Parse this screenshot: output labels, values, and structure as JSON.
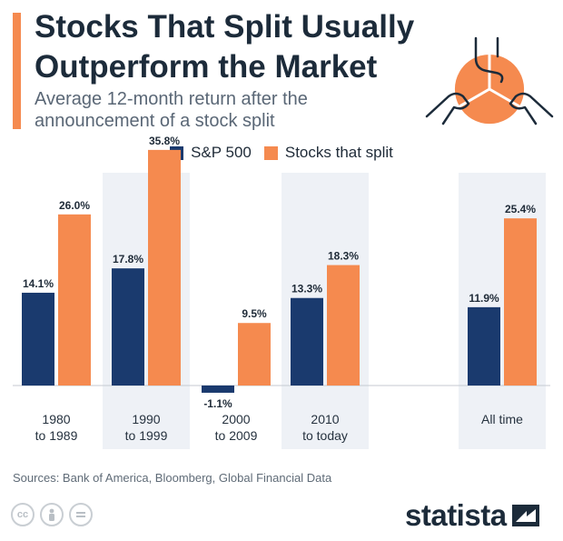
{
  "header": {
    "title": "Stocks That Split Usually Outperform the Market",
    "subtitle": "Average 12-month return after the announcement of a stock split"
  },
  "colors": {
    "accent": "#f58a4f",
    "sp500": "#1a3a6e",
    "split": "#f58a4f",
    "shade": "#eef1f6",
    "title": "#1c2b3a"
  },
  "legend": {
    "sp500": "S&P 500",
    "split": "Stocks that split"
  },
  "chart_data": {
    "type": "bar",
    "title": "Stocks That Split Usually Outperform the Market",
    "subtitle": "Average 12-month return after the announcement of a stock split",
    "categories": [
      "1980\nto 1989",
      "1990\nto 1999",
      "2000\nto 2009",
      "2010\nto today",
      "All time"
    ],
    "shaded": [
      false,
      true,
      false,
      true,
      true
    ],
    "series": [
      {
        "name": "S&P 500",
        "values": [
          14.1,
          17.8,
          -1.1,
          13.3,
          11.9
        ],
        "labels": [
          "14.1%",
          "17.8%",
          "-1.1%",
          "13.3%",
          "11.9%"
        ]
      },
      {
        "name": "Stocks that split",
        "values": [
          26.0,
          35.8,
          9.5,
          18.3,
          25.4
        ],
        "labels": [
          "26.0%",
          "35.8%",
          "9.5%",
          "18.3%",
          "25.4%"
        ]
      }
    ],
    "ylim": [
      -4,
      38
    ],
    "xlabel": "",
    "ylabel": "",
    "grid": false,
    "legend": "top-center"
  },
  "footer": {
    "source": "Sources: Bank of America, Bloomberg, Global Financial Data",
    "brand": "statista",
    "cc_icons": [
      "cc-icon",
      "attribution-icon",
      "no-derivatives-icon"
    ]
  }
}
